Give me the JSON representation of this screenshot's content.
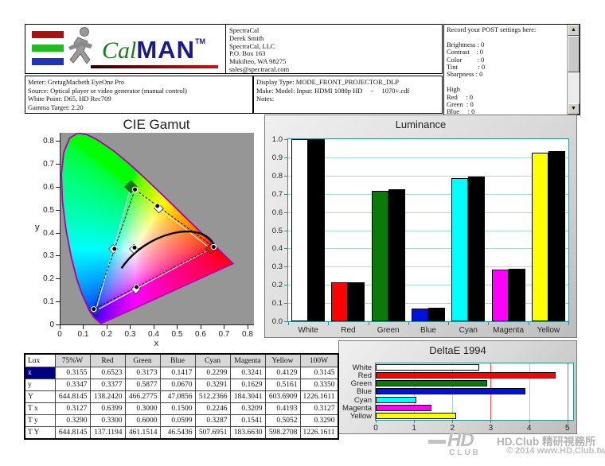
{
  "header": {
    "logo": {
      "cal": "Cal",
      "man": "MAN",
      "tm": "TM"
    },
    "address_lines": [
      "SpectraCal",
      "Derek Smith",
      "SpectraCal, LLC",
      "P.O. Box 163",
      "Mukilteo, WA 98275",
      "sales@spectracal.com"
    ],
    "post_settings_lines": [
      "Record your POST settings here:",
      "",
      "Brightness : 0",
      "Contrast    : 0",
      "Color         : 0",
      "Tint            : 0",
      "Sharpness : 0",
      "",
      "High",
      "Red     : 0",
      "Green  : 0",
      "Blue     : 0"
    ],
    "meter_lines": [
      "Meter: GretagMacbeth EyeOne Pro",
      "Source: Optical player or video generator (manual control)",
      "White Point: D65, HD Rec709",
      "Gamma Target: 2.20"
    ],
    "display_lines": [
      "Display Type: MODE_FRONT_PROJECTOR_DLP",
      "Make: Model: Input: HDMI 1080p HD     -     1070+.cdf",
      "Notes:"
    ]
  },
  "chart_data": [
    {
      "type": "scatter",
      "title": "CIE Gamut",
      "xlabel": "x",
      "ylabel": "y",
      "xlim": [
        0,
        0.824
      ],
      "ylim": [
        0,
        0.835
      ],
      "xtick_labels": [
        "0",
        "0.1",
        "0.2",
        "0.3",
        "0.4",
        "0.5",
        "0.6",
        "0.7",
        "0.8"
      ],
      "ytick_labels": [
        "0",
        "0.1",
        "0.2",
        "0.3",
        "0.4",
        "0.5",
        "0.6",
        "0.7",
        "0.8"
      ],
      "measured_points": [
        {
          "name": "White",
          "x": 0.3155,
          "y": 0.3347
        },
        {
          "name": "Red",
          "x": 0.6523,
          "y": 0.3377
        },
        {
          "name": "Green",
          "x": 0.3173,
          "y": 0.5877
        },
        {
          "name": "Blue",
          "x": 0.1417,
          "y": 0.067
        },
        {
          "name": "Cyan",
          "x": 0.2299,
          "y": 0.3291
        },
        {
          "name": "Magenta",
          "x": 0.3241,
          "y": 0.1629
        },
        {
          "name": "Yellow",
          "x": 0.4129,
          "y": 0.5161
        }
      ],
      "target_points": [
        {
          "name": "White",
          "x": 0.3127,
          "y": 0.329,
          "color": "#ffffff",
          "size": 8
        },
        {
          "name": "Red",
          "x": 0.6399,
          "y": 0.33,
          "color": "#ee1111",
          "size": 9
        },
        {
          "name": "Green",
          "x": 0.3,
          "y": 0.6,
          "color": "#0b7a0b",
          "size": 11
        },
        {
          "name": "Blue",
          "x": 0.15,
          "y": 0.0599,
          "color": "#2233cc",
          "size": 8
        },
        {
          "name": "Cyan",
          "x": 0.2246,
          "y": 0.3287,
          "color": "#ffffff",
          "size": 8
        },
        {
          "name": "Magenta",
          "x": 0.3209,
          "y": 0.1541,
          "color": "#ffffff",
          "size": 8
        },
        {
          "name": "Yellow",
          "x": 0.4193,
          "y": 0.5052,
          "color": "#ffffff",
          "size": 8
        }
      ],
      "measured_path_order": [
        "Blue",
        "Cyan",
        "Green",
        "Yellow",
        "Red",
        "Magenta",
        "Blue"
      ],
      "target_triangle_order": [
        "Blue",
        "Green",
        "Red",
        "Blue"
      ],
      "planckian_curve_bezier": [
        [
          0.26,
          0.245
        ],
        [
          0.36,
          0.4
        ],
        [
          0.6,
          0.46
        ],
        [
          0.655,
          0.345
        ]
      ],
      "locus_outline_color": "#aa00aa",
      "spectral_locus": [
        [
          0.1741,
          0.005
        ],
        [
          0.1714,
          0.0051
        ],
        [
          0.1689,
          0.0069
        ],
        [
          0.1644,
          0.0109
        ],
        [
          0.1566,
          0.0177
        ],
        [
          0.144,
          0.0297
        ],
        [
          0.1241,
          0.0578
        ],
        [
          0.0913,
          0.1327
        ],
        [
          0.0687,
          0.2007
        ],
        [
          0.0454,
          0.295
        ],
        [
          0.0235,
          0.4127
        ],
        [
          0.0082,
          0.5384
        ],
        [
          0.0039,
          0.6548
        ],
        [
          0.0139,
          0.7502
        ],
        [
          0.0389,
          0.812
        ],
        [
          0.0743,
          0.8338
        ],
        [
          0.1142,
          0.8262
        ],
        [
          0.1547,
          0.8059
        ],
        [
          0.2296,
          0.7543
        ],
        [
          0.3016,
          0.6923
        ],
        [
          0.3731,
          0.6245
        ],
        [
          0.4441,
          0.5547
        ],
        [
          0.5125,
          0.4866
        ],
        [
          0.5752,
          0.4242
        ],
        [
          0.627,
          0.3725
        ],
        [
          0.6658,
          0.334
        ],
        [
          0.6915,
          0.3083
        ],
        [
          0.719,
          0.2809
        ],
        [
          0.7347,
          0.2653
        ]
      ]
    },
    {
      "type": "bar",
      "title": "Luminance",
      "categories": [
        "White",
        "Red",
        "Green",
        "Blue",
        "Cyan",
        "Magenta",
        "Yellow"
      ],
      "series": [
        {
          "name": "measured",
          "values": [
            0.998,
            0.212,
            0.715,
            0.072,
            0.787,
            0.283,
            0.925
          ],
          "colors": [
            "#ffffff",
            "#ff0000",
            "#0b7a0b",
            "#0011dd",
            "#00ffff",
            "#ff00ff",
            "#ffff00"
          ]
        },
        {
          "name": "target",
          "values": [
            1.0,
            0.216,
            0.725,
            0.073,
            0.795,
            0.287,
            0.936
          ],
          "color": "#000000"
        }
      ],
      "ylim": [
        0,
        1.0
      ],
      "ytick_labels": [
        "1.0",
        "0.9",
        "0.8",
        "0.7",
        "0.6",
        "0.5",
        "0.4",
        "0.3",
        "0.2",
        "0.1",
        "0.0"
      ],
      "grid": true,
      "grid_color": "#aadada",
      "axis_color": "#2e9090"
    },
    {
      "type": "bar",
      "orientation": "horizontal",
      "title": "DeltaE 1994",
      "categories": [
        "White",
        "Red",
        "Green",
        "Blue",
        "Cyan",
        "Magenta",
        "Yellow"
      ],
      "values": [
        2.7,
        4.7,
        2.9,
        3.9,
        1.05,
        1.45,
        2.1
      ],
      "colors": [
        "#ffffff",
        "#ff0000",
        "#0b7a0b",
        "#0011dd",
        "#00ffff",
        "#ff00ff",
        "#ffff00"
      ],
      "xlim": [
        0,
        5.15
      ],
      "xtick_labels": [
        "0",
        "1",
        "2",
        "3",
        "4",
        "5"
      ],
      "gridlines": [
        {
          "x": 1,
          "color": "#9fd6d6"
        },
        {
          "x": 2,
          "color": "#9fd6d6"
        },
        {
          "x": 3,
          "color": "#ee5555"
        },
        {
          "x": 4,
          "color": "#9fd6d6"
        },
        {
          "x": 5,
          "color": "#ee5555"
        }
      ],
      "axis_color": "#2e9090"
    }
  ],
  "table": {
    "columns": [
      "Lux",
      "75%W",
      "Red",
      "Green",
      "Blue",
      "Cyan",
      "Magenta",
      "Yellow",
      "100W"
    ],
    "rows": [
      {
        "label": "x",
        "selected": true,
        "values": [
          "0.3155",
          "0.6523",
          "0.3173",
          "0.1417",
          "0.2299",
          "0.3241",
          "0.4129",
          "0.3145"
        ]
      },
      {
        "label": "y",
        "selected": false,
        "values": [
          "0.3347",
          "0.3377",
          "0.5877",
          "0.0670",
          "0.3291",
          "0.1629",
          "0.5161",
          "0.3350"
        ]
      },
      {
        "label": "Y",
        "selected": false,
        "values": [
          "644.8145",
          "138.2420",
          "466.2775",
          "47.0856",
          "512.2366",
          "184.3041",
          "603.6909",
          "1226.1611"
        ]
      },
      {
        "label": "T x",
        "selected": false,
        "values": [
          "0.3127",
          "0.6399",
          "0.3000",
          "0.1500",
          "0.2246",
          "0.3209",
          "0.4193",
          "0.3127"
        ]
      },
      {
        "label": "T y",
        "selected": false,
        "values": [
          "0.3290",
          "0.3300",
          "0.6000",
          "0.0599",
          "0.3287",
          "0.1541",
          "0.5052",
          "0.3290"
        ]
      },
      {
        "label": "T Y",
        "selected": false,
        "values": [
          "644.8145",
          "137.1194",
          "461.1514",
          "46.5436",
          "507.6951",
          "183.6630",
          "598.2708",
          "1226.1611"
        ]
      }
    ]
  },
  "watermark": {
    "logo_top": "HD",
    "logo_bottom": "CLUB",
    "title": "HD.Club 精研視務所",
    "copyright": "© 2014  www.HD.Club.tw"
  },
  "colors": {
    "plot_bg": "#969696",
    "panel_border": "#7a7a7a",
    "selected_cell": "#000080"
  }
}
